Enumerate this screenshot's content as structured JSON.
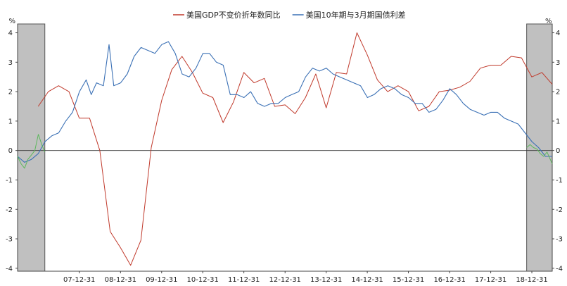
{
  "chart_data": {
    "type": "line",
    "y_unit_left": "%",
    "y_unit_right": "%",
    "ylim": [
      -4.1,
      4.3
    ],
    "y_ticks": [
      -4,
      -3,
      -2,
      -1,
      0,
      1,
      2,
      3,
      4
    ],
    "y_tick_labels": [
      "-4",
      "-3",
      "-2",
      "-1",
      "0",
      "1",
      "2",
      "3",
      "4"
    ],
    "x_range": [
      "2006-07-01",
      "2019-06-30"
    ],
    "x_ticks": [
      "2007-12-31",
      "2008-12-31",
      "2009-12-31",
      "2010-12-31",
      "2011-12-31",
      "2012-12-31",
      "2013-12-31",
      "2014-12-31",
      "2015-12-31",
      "2016-12-31",
      "2017-12-31",
      "2018-12-31"
    ],
    "x_tick_labels": [
      "07-12-31",
      "08-12-31",
      "09-12-31",
      "10-12-31",
      "11-12-31",
      "12-12-31",
      "13-12-31",
      "14-12-31",
      "15-12-31",
      "16-12-31",
      "17-12-31",
      "18-12-31"
    ],
    "shaded_periods": [
      [
        "2006-07-01",
        "2007-02-28"
      ],
      [
        "2018-11-15",
        "2019-06-30"
      ]
    ],
    "shaded_color": "#c0c0c0",
    "legend_position": "top-center",
    "series": [
      {
        "name": "美国GDP不变价折年数同比",
        "color": "#c0392b",
        "x": [
          "2006-12-31",
          "2007-03-31",
          "2007-06-30",
          "2007-09-30",
          "2007-12-31",
          "2008-03-31",
          "2008-06-30",
          "2008-09-30",
          "2008-12-31",
          "2009-03-31",
          "2009-06-30",
          "2009-09-30",
          "2009-12-31",
          "2010-03-31",
          "2010-06-30",
          "2010-09-30",
          "2010-12-31",
          "2011-03-31",
          "2011-06-30",
          "2011-09-30",
          "2011-12-31",
          "2012-03-31",
          "2012-06-30",
          "2012-09-30",
          "2012-12-31",
          "2013-03-31",
          "2013-06-30",
          "2013-09-30",
          "2013-12-31",
          "2014-03-31",
          "2014-06-30",
          "2014-09-30",
          "2014-12-31",
          "2015-03-31",
          "2015-06-30",
          "2015-09-30",
          "2015-12-31",
          "2016-03-31",
          "2016-06-30",
          "2016-09-30",
          "2016-12-31",
          "2017-03-31",
          "2017-06-30",
          "2017-09-30",
          "2017-12-31",
          "2018-03-31",
          "2018-06-30",
          "2018-09-30",
          "2018-12-31",
          "2019-03-31",
          "2019-06-30"
        ],
        "values": [
          1.5,
          2.0,
          2.2,
          2.0,
          1.1,
          1.1,
          0.0,
          -2.75,
          -3.3,
          -3.9,
          -3.05,
          0.1,
          1.7,
          2.75,
          3.2,
          2.65,
          1.95,
          1.8,
          0.95,
          1.65,
          2.65,
          2.3,
          2.45,
          1.5,
          1.55,
          1.25,
          1.8,
          2.6,
          1.45,
          2.65,
          2.6,
          4.0,
          3.25,
          2.4,
          2.0,
          2.2,
          2.0,
          1.35,
          1.5,
          2.0,
          2.05,
          2.15,
          2.35,
          2.8,
          2.9,
          2.9,
          3.2,
          3.15,
          2.5,
          2.65,
          2.25
        ]
      },
      {
        "name": "美国10年期与3月期国债利差",
        "color": "#3a70b5",
        "x": [
          "2006-07-01",
          "2006-09-01",
          "2006-11-01",
          "2007-01-01",
          "2007-03-01",
          "2007-05-01",
          "2007-07-01",
          "2007-09-01",
          "2007-11-01",
          "2008-01-01",
          "2008-03-01",
          "2008-04-15",
          "2008-06-01",
          "2008-08-01",
          "2008-09-20",
          "2008-11-01",
          "2009-01-01",
          "2009-03-01",
          "2009-05-01",
          "2009-07-01",
          "2009-09-01",
          "2009-11-01",
          "2010-01-01",
          "2010-03-01",
          "2010-05-01",
          "2010-07-01",
          "2010-09-01",
          "2010-11-01",
          "2011-01-01",
          "2011-03-01",
          "2011-05-01",
          "2011-07-01",
          "2011-09-01",
          "2011-11-01",
          "2012-01-01",
          "2012-03-01",
          "2012-05-01",
          "2012-07-01",
          "2012-09-01",
          "2012-11-01",
          "2013-01-01",
          "2013-03-01",
          "2013-05-01",
          "2013-07-01",
          "2013-09-01",
          "2013-11-01",
          "2014-01-01",
          "2014-03-01",
          "2014-05-01",
          "2014-07-01",
          "2014-09-01",
          "2014-11-01",
          "2015-01-01",
          "2015-03-01",
          "2015-05-01",
          "2015-07-01",
          "2015-09-01",
          "2015-11-01",
          "2016-01-01",
          "2016-03-01",
          "2016-05-01",
          "2016-07-01",
          "2016-09-01",
          "2016-11-01",
          "2017-01-01",
          "2017-03-01",
          "2017-05-01",
          "2017-07-01",
          "2017-09-01",
          "2017-11-01",
          "2018-01-01",
          "2018-03-01",
          "2018-05-01",
          "2018-07-01",
          "2018-09-01",
          "2018-11-01",
          "2019-01-01",
          "2019-03-01",
          "2019-05-01",
          "2019-06-30"
        ],
        "values": [
          -0.2,
          -0.4,
          -0.3,
          -0.1,
          0.3,
          0.5,
          0.6,
          1.0,
          1.3,
          2.0,
          2.4,
          1.9,
          2.3,
          2.2,
          3.6,
          2.2,
          2.3,
          2.6,
          3.2,
          3.5,
          3.4,
          3.3,
          3.6,
          3.7,
          3.3,
          2.6,
          2.5,
          2.8,
          3.3,
          3.3,
          3.0,
          2.9,
          1.9,
          1.9,
          1.8,
          2.0,
          1.6,
          1.5,
          1.6,
          1.6,
          1.8,
          1.9,
          2.0,
          2.5,
          2.8,
          2.7,
          2.8,
          2.6,
          2.5,
          2.4,
          2.3,
          2.2,
          1.8,
          1.9,
          2.1,
          2.2,
          2.1,
          1.9,
          1.8,
          1.6,
          1.6,
          1.3,
          1.4,
          1.7,
          2.1,
          1.9,
          1.6,
          1.4,
          1.3,
          1.2,
          1.3,
          1.3,
          1.1,
          1.0,
          0.9,
          0.6,
          0.3,
          0.1,
          -0.2,
          -0.2
        ]
      },
      {
        "name": "",
        "color": "#5cb85c",
        "x": [
          "2006-07-01",
          "2006-08-01",
          "2006-09-01",
          "2006-10-01",
          "2006-11-01",
          "2006-12-01",
          "2007-01-01",
          "2007-02-01",
          "2007-02-28",
          "2018-11-15",
          "2018-12-15",
          "2019-01-15",
          "2019-02-15",
          "2019-03-15",
          "2019-04-15",
          "2019-05-15",
          "2019-06-30"
        ],
        "values": [
          -0.2,
          -0.45,
          -0.6,
          -0.3,
          -0.15,
          0.0,
          0.55,
          0.2,
          -0.05,
          0.1,
          0.2,
          0.1,
          0.05,
          -0.1,
          -0.2,
          -0.05,
          -0.45
        ],
        "segments": [
          [
            0,
            8
          ],
          [
            9,
            16
          ]
        ]
      }
    ]
  }
}
